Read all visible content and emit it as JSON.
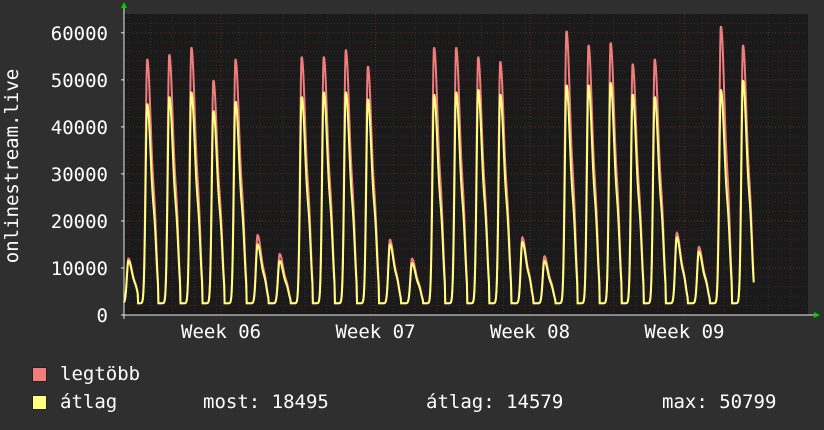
{
  "chart_data": {
    "type": "area",
    "ylabel": "onlinestream.live",
    "ylim": [
      0,
      64000
    ],
    "yticks": [
      0,
      10000,
      20000,
      30000,
      40000,
      50000,
      60000
    ],
    "ytick_labels": [
      "0",
      "10000",
      "20000",
      "30000",
      "40000",
      "50000",
      "60000"
    ],
    "xlim_days": [
      0,
      31
    ],
    "xticks": [
      {
        "day": 4.4,
        "label": "Week 06"
      },
      {
        "day": 11.4,
        "label": "Week 07"
      },
      {
        "day": 18.4,
        "label": "Week 08"
      },
      {
        "day": 25.4,
        "label": "Week 09"
      }
    ],
    "grid": true,
    "daily_peaks": {
      "day": [
        0.2,
        1.05,
        2.05,
        3.05,
        4.05,
        5.05,
        6.05,
        7.05,
        8.05,
        9.05,
        10.05,
        11.05,
        12.05,
        13.05,
        14.05,
        15.05,
        16.05,
        17.05,
        18.05,
        19.05,
        20.05,
        21.05,
        22.05,
        23.05,
        24.05,
        25.05,
        26.05,
        27.05,
        28.05,
        29.05,
        30.05
      ],
      "max": [
        12000,
        54500,
        55500,
        57000,
        50000,
        54500,
        17000,
        13000,
        55000,
        55000,
        56500,
        53000,
        16000,
        12000,
        57000,
        57000,
        55000,
        54000,
        16500,
        12500,
        60500,
        57500,
        58000,
        53500,
        54500,
        17500,
        14500,
        61500,
        57500,
        0,
        0
      ],
      "avg": [
        11500,
        45000,
        46500,
        47500,
        43500,
        45500,
        15000,
        11500,
        46500,
        47500,
        47500,
        46000,
        15000,
        11000,
        47000,
        47500,
        48000,
        47000,
        15500,
        11500,
        49000,
        49000,
        49500,
        47000,
        46500,
        16500,
        13500,
        48000,
        50000,
        0,
        0
      ]
    },
    "series": [
      {
        "name": "legtöbb",
        "color": "#f07c7c"
      },
      {
        "name": "átlag",
        "color": "#ffff80"
      }
    ],
    "stats": {
      "most_label": "most:",
      "most_value": "18495",
      "atlag_label": "átlag:",
      "atlag_value": "14579",
      "max_label": "max:",
      "max_value": "50799"
    }
  },
  "colors": {
    "background": "#2f2f2f",
    "plot_background": "#1a1a1a",
    "grid_major": "#6a2828",
    "grid_minor": "#3a2a2a",
    "axis": "#e8e8e8",
    "arrow": "#00cc00"
  }
}
